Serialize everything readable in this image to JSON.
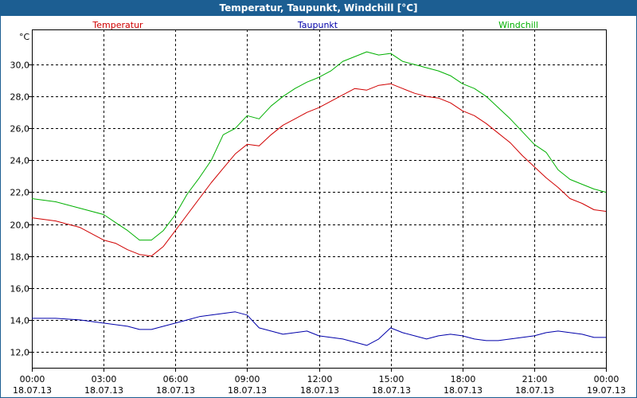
{
  "window": {
    "title": "Temperatur, Taupunkt, Windchill [°C]"
  },
  "chart_data": {
    "type": "line",
    "title": "Temperatur, Taupunkt, Windchill [°C]",
    "ylabel": "°C",
    "xlabel": "",
    "ylim": [
      11.0,
      32.2
    ],
    "xlim": [
      0,
      24
    ],
    "grid": true,
    "legend": "top",
    "y_ticks": [
      12,
      14,
      16,
      18,
      20,
      22,
      24,
      26,
      28,
      30
    ],
    "y_tick_labels": [
      "12,0",
      "14,0",
      "16,0",
      "18,0",
      "20,0",
      "22,0",
      "24,0",
      "26,0",
      "28,0",
      "30,0"
    ],
    "x_ticks": [
      0,
      3,
      6,
      9,
      12,
      15,
      18,
      21,
      24
    ],
    "x_tick_times": [
      "00:00",
      "03:00",
      "06:00",
      "09:00",
      "12:00",
      "15:00",
      "18:00",
      "21:00",
      "00:00"
    ],
    "x_tick_dates": [
      "18.07.13",
      "18.07.13",
      "18.07.13",
      "18.07.13",
      "18.07.13",
      "18.07.13",
      "18.07.13",
      "18.07.13",
      "19.07.13"
    ],
    "x": [
      0,
      1,
      2,
      3,
      3.5,
      4,
      4.5,
      5,
      5.5,
      6,
      6.5,
      7,
      7.5,
      8,
      8.5,
      9,
      9.5,
      10,
      10.5,
      11,
      11.5,
      12,
      12.5,
      13,
      13.5,
      14,
      14.5,
      15,
      15.5,
      16,
      16.5,
      17,
      17.5,
      18,
      18.5,
      19,
      19.5,
      20,
      20.5,
      21,
      21.5,
      22,
      22.5,
      23,
      23.5,
      24
    ],
    "series": [
      {
        "name": "Temperatur",
        "color": "#d00000",
        "values": [
          20.4,
          20.2,
          19.8,
          19.0,
          18.8,
          18.4,
          18.1,
          18.0,
          18.6,
          19.6,
          20.6,
          21.6,
          22.6,
          23.5,
          24.4,
          25.0,
          24.9,
          25.6,
          26.2,
          26.6,
          27.0,
          27.3,
          27.7,
          28.1,
          28.5,
          28.4,
          28.7,
          28.8,
          28.5,
          28.2,
          28.0,
          27.9,
          27.6,
          27.1,
          26.8,
          26.3,
          25.7,
          25.1,
          24.3,
          23.6,
          22.9,
          22.3,
          21.6,
          21.3,
          20.9,
          20.8
        ]
      },
      {
        "name": "Taupunkt",
        "color": "#0000aa",
        "values": [
          14.1,
          14.1,
          14.0,
          13.8,
          13.7,
          13.6,
          13.4,
          13.4,
          13.6,
          13.8,
          14.0,
          14.2,
          14.3,
          14.4,
          14.5,
          14.3,
          13.5,
          13.3,
          13.1,
          13.2,
          13.3,
          13.0,
          12.9,
          12.8,
          12.6,
          12.4,
          12.8,
          13.5,
          13.2,
          13.0,
          12.8,
          13.0,
          13.1,
          13.0,
          12.8,
          12.7,
          12.7,
          12.8,
          12.9,
          13.0,
          13.2,
          13.3,
          13.2,
          13.1,
          12.9,
          12.9
        ]
      },
      {
        "name": "Windchill",
        "color": "#00b000",
        "values": [
          21.6,
          21.4,
          21.0,
          20.6,
          20.1,
          19.6,
          19.0,
          19.0,
          19.6,
          20.6,
          21.9,
          22.9,
          24.0,
          25.6,
          26.0,
          26.8,
          26.6,
          27.4,
          28.0,
          28.5,
          28.9,
          29.2,
          29.6,
          30.2,
          30.5,
          30.8,
          30.6,
          30.7,
          30.2,
          30.0,
          29.8,
          29.6,
          29.3,
          28.8,
          28.5,
          28.0,
          27.3,
          26.6,
          25.8,
          25.0,
          24.5,
          23.4,
          22.8,
          22.5,
          22.2,
          22.0
        ]
      }
    ]
  }
}
